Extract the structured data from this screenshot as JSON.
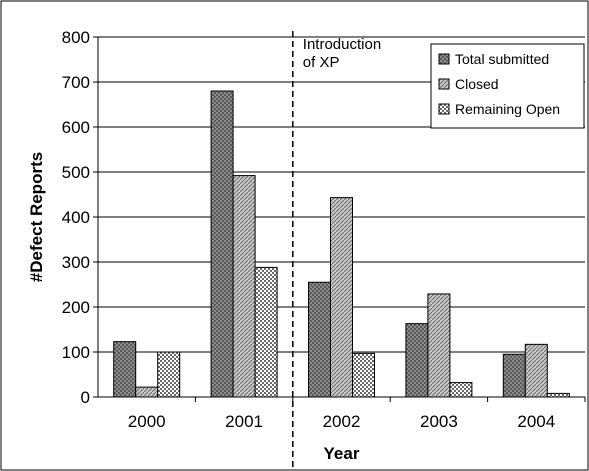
{
  "chart_data": {
    "type": "bar",
    "categories": [
      "2000",
      "2001",
      "2002",
      "2003",
      "2004"
    ],
    "series": [
      {
        "name": "Total submitted",
        "values": [
          123,
          680,
          255,
          163,
          95
        ],
        "pattern": "dense-dots"
      },
      {
        "name": "Closed",
        "values": [
          22,
          492,
          443,
          229,
          117
        ],
        "pattern": "diagonal-light"
      },
      {
        "name": "Remaining Open",
        "values": [
          100,
          288,
          97,
          32,
          8
        ],
        "pattern": "checker"
      }
    ],
    "title": "",
    "xlabel": "Year",
    "ylabel": "#Defect Reports",
    "ylim": [
      0,
      800
    ],
    "yticks": [
      0,
      100,
      200,
      300,
      400,
      500,
      600,
      700,
      800
    ],
    "grid": "horizontal",
    "legend_position": "top-right",
    "annotation": {
      "lines": [
        "Introduction",
        "of XP"
      ],
      "position": "between 2001 and 2002",
      "style": "dashed vertical line"
    },
    "colors": {
      "dark": "#555555",
      "mid": "#9a9a9a",
      "light": "#ffffff"
    }
  }
}
